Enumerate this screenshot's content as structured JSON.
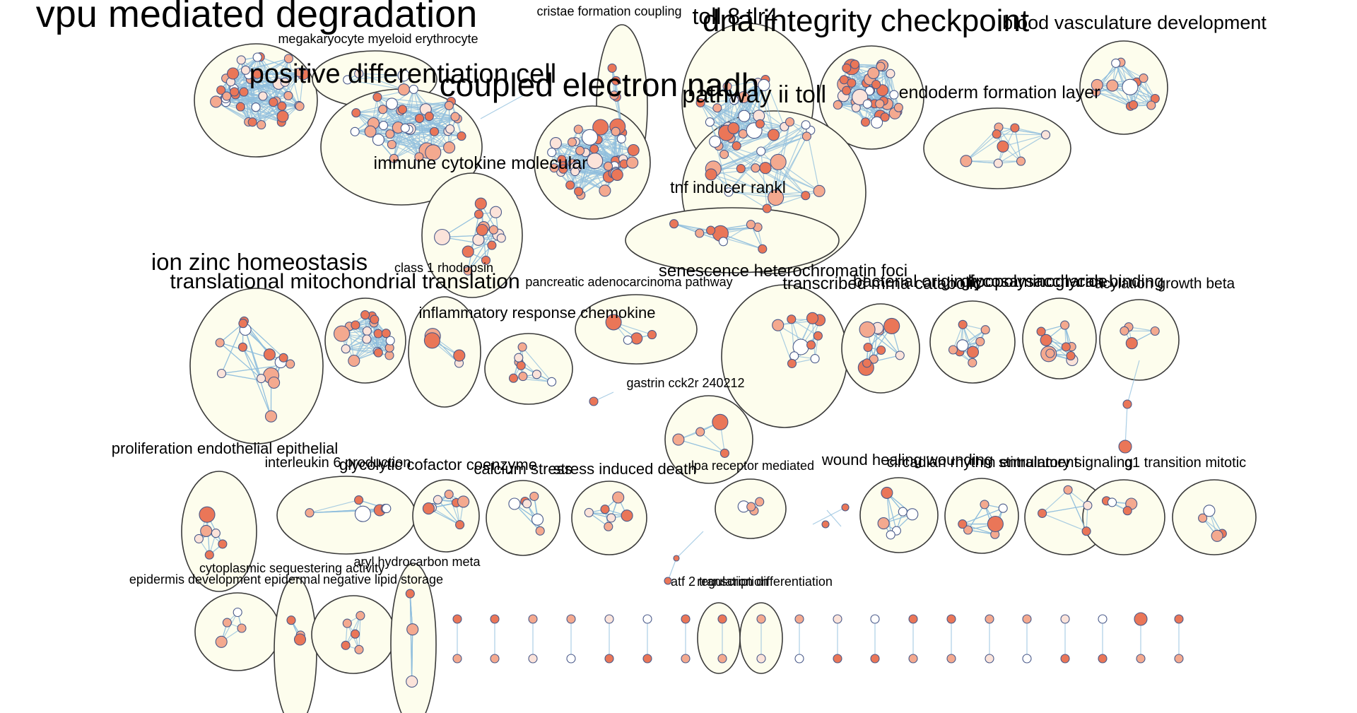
{
  "palette": {
    "cluster_fill": "#fdfded",
    "cluster_stroke": "#3a3a3a",
    "edge": "#8fbedd",
    "node_high": "#ea7658",
    "node_mid": "#f4a98f",
    "node_low": "#fbe3da",
    "node_white": "#ffffff"
  },
  "clusters": [
    {
      "id": "vpu",
      "label": "vpu mediated degradation",
      "label_size": "large"
    },
    {
      "id": "megakaryocyte",
      "label": "megakaryocyte myeloid erythrocyte",
      "label_size": "small"
    },
    {
      "id": "positive-diff",
      "label": "positive differentiation cell",
      "label_size": "large"
    },
    {
      "id": "cristae",
      "label": "cristae formation coupling",
      "label_size": "small"
    },
    {
      "id": "coupled",
      "label": "coupled electron nadh",
      "label_size": "large"
    },
    {
      "id": "toll",
      "label": "toll 8 tlr4",
      "label_size": "medium"
    },
    {
      "id": "dna",
      "label": "dna integrity checkpoint",
      "label_size": "large"
    },
    {
      "id": "blood",
      "label": "blood vasculature development",
      "label_size": "medium"
    },
    {
      "id": "pathway-toll",
      "label": "pathway ii toll",
      "label_size": "medium"
    },
    {
      "id": "endoderm",
      "label": "endoderm formation layer",
      "label_size": "medium"
    },
    {
      "id": "immune",
      "label": "immune cytokine molecular",
      "label_size": "medium"
    },
    {
      "id": "tnf",
      "label": "tnf inducer rankl",
      "label_size": "medium"
    },
    {
      "id": "ion-zinc",
      "label": "ion zinc homeostasis",
      "label_size": "medium-large"
    },
    {
      "id": "class1",
      "label": "class 1 rhodopsin",
      "label_size": "small"
    },
    {
      "id": "translational",
      "label": "translational mitochondrial translation",
      "label_size": "medium-large"
    },
    {
      "id": "pancreatic",
      "label": "pancreatic adenocarcinoma pathway",
      "label_size": "small"
    },
    {
      "id": "senescence",
      "label": "senescence heterochromatin foci",
      "label_size": "medium"
    },
    {
      "id": "transcribed",
      "label": "transcribed mrna catabolic",
      "label_size": "medium"
    },
    {
      "id": "bacterial",
      "label": "bacterial origin lipopolysaccharide",
      "label_size": "medium"
    },
    {
      "id": "glycosaminoglycan",
      "label": "glycosaminoglycan binding",
      "label_size": "medium"
    },
    {
      "id": "acylation",
      "label": "acylation growth beta",
      "label_size": "medium"
    },
    {
      "id": "inflammatory",
      "label": "inflammatory response chemokine",
      "label_size": "medium"
    },
    {
      "id": "gastrin",
      "label": "gastrin cck2r 240212",
      "label_size": "small"
    },
    {
      "id": "proliferation",
      "label": "proliferation endothelial epithelial",
      "label_size": "medium"
    },
    {
      "id": "interleukin",
      "label": "interleukin 6 production",
      "label_size": "medium"
    },
    {
      "id": "glycolytic",
      "label": "glycolytic cofactor coenzyme",
      "label_size": "medium"
    },
    {
      "id": "calcium",
      "label": "calcium stress",
      "label_size": "medium"
    },
    {
      "id": "stress",
      "label": "stress induced death",
      "label_size": "medium"
    },
    {
      "id": "lpa",
      "label": "lpa receptor mediated",
      "label_size": "small"
    },
    {
      "id": "wound",
      "label": "wound healing wounding",
      "label_size": "medium"
    },
    {
      "id": "circadian",
      "label": "circadian rhythm entrainment",
      "label_size": "medium"
    },
    {
      "id": "stimulatory",
      "label": "stimulatory signaling",
      "label_size": "medium"
    },
    {
      "id": "mitotic",
      "label": "g1 transition mitotic",
      "label_size": "medium"
    },
    {
      "id": "cytoplasmic",
      "label": "cytoplasmic sequestering activity",
      "label_size": "small"
    },
    {
      "id": "aryl",
      "label": "aryl hydrocarbon meta",
      "label_size": "small"
    },
    {
      "id": "epidermis",
      "label": "epidermis development epidermal",
      "label_size": "small"
    },
    {
      "id": "negative",
      "label": "negative lipid storage",
      "label_size": "small"
    },
    {
      "id": "atf",
      "label": "atf 2 transcription",
      "label_size": "small"
    },
    {
      "id": "regulation",
      "label": "regulation differentiation",
      "label_size": "small"
    }
  ]
}
